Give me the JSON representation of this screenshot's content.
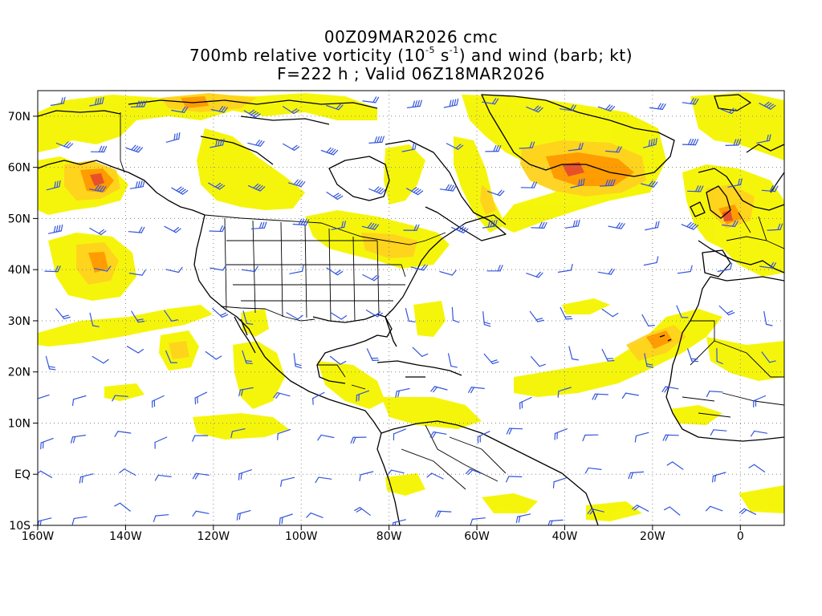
{
  "title": {
    "run": "00Z09MAR2026 cmc",
    "field_prefix": "700mb relative vorticity (10",
    "field_exp1": "-5",
    "field_mid": " s",
    "field_exp2": "-1",
    "field_suffix": ") and wind (barb; kt)",
    "valid": "F=222 h ; Valid 06Z18MAR2026"
  },
  "axes": {
    "lat_labels": [
      "70N",
      "60N",
      "50N",
      "40N",
      "30N",
      "20N",
      "10N",
      "EQ",
      "10S"
    ],
    "lat_values": [
      70,
      60,
      50,
      40,
      30,
      20,
      10,
      0,
      -10
    ],
    "lon_labels": [
      "160W",
      "140W",
      "120W",
      "100W",
      "80W",
      "60W",
      "40W",
      "20W",
      "0"
    ],
    "lon_values": [
      -160,
      -140,
      -120,
      -100,
      -80,
      -60,
      -40,
      -20,
      0
    ],
    "lon_range": [
      -160,
      10
    ],
    "lat_range": [
      -10,
      75
    ],
    "gridlines": "dotted"
  },
  "colors": {
    "shade_low": "#f5f500",
    "shade_mid": "#ffd21e",
    "shade_high": "#ff9900",
    "shade_peak": "#e8502a",
    "barb": "#3355dd",
    "coast": "#000000",
    "grid": "#888888"
  }
}
